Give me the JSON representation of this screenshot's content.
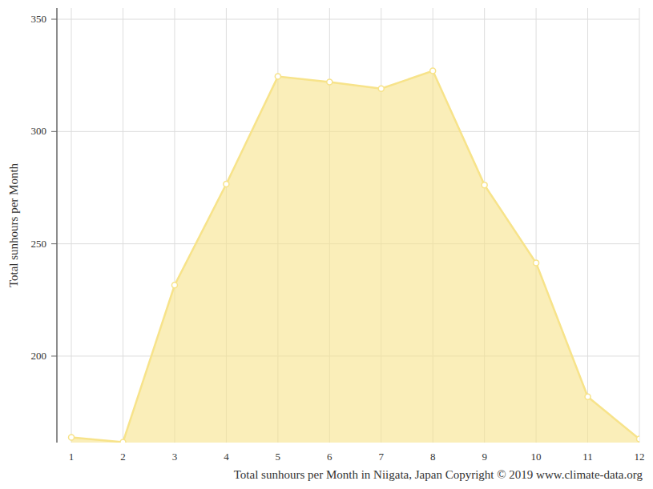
{
  "chart_data": {
    "type": "area",
    "x_label": "Total sunhours per Month in Niigata, Japan Copyright © 2019 www.climate-data.org",
    "y_label": "Total sunhours per Month",
    "x": [
      1,
      2,
      3,
      4,
      5,
      6,
      7,
      8,
      9,
      10,
      11,
      12
    ],
    "values": [
      163.8,
      161.7,
      231.6,
      276.6,
      324.5,
      322.0,
      319.1,
      327.0,
      276.2,
      241.5,
      181.9,
      163.1
    ],
    "color": "#f7e38a",
    "marker": "circle",
    "xlim": [
      0.72,
      12
    ],
    "ylim": [
      161.5,
      355
    ],
    "xticks": [
      1,
      2,
      3,
      4,
      5,
      6,
      7,
      8,
      9,
      10,
      11,
      12
    ],
    "yticks": [
      200,
      250,
      300,
      350
    ],
    "grid": true
  }
}
